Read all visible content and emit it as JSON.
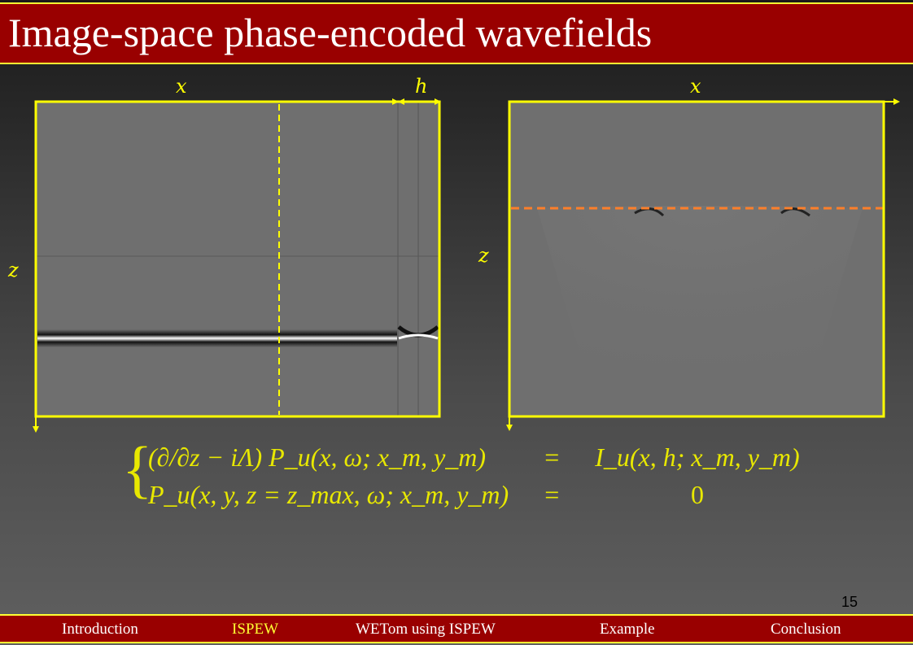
{
  "title": "Image-space phase-encoded wavefields",
  "left_panel": {
    "x_label": "x",
    "h_label": "h",
    "z_label": "z"
  },
  "right_panel": {
    "x_label": "x",
    "z_label": "z"
  },
  "equation": {
    "row1_lhs": "(∂/∂z − iΛ) P_u(x, ω; x_m, y_m)",
    "row1_eq": "=",
    "row1_rhs": "I_u(x, h; x_m, y_m)",
    "row2_lhs": "P_u(x, y, z = z_max, ω; x_m, y_m)",
    "row2_eq": "=",
    "row2_rhs": "0"
  },
  "page_number": "15",
  "nav": [
    {
      "label": "Introduction",
      "active": false
    },
    {
      "label": "ISPEW",
      "active": true
    },
    {
      "label": "WETom using ISPEW",
      "active": false
    },
    {
      "label": "Example",
      "active": false
    },
    {
      "label": "Conclusion",
      "active": false
    }
  ],
  "colors": {
    "bar": "#990000",
    "accent": "#ffff33",
    "orange_line": "#ff7f2a"
  }
}
